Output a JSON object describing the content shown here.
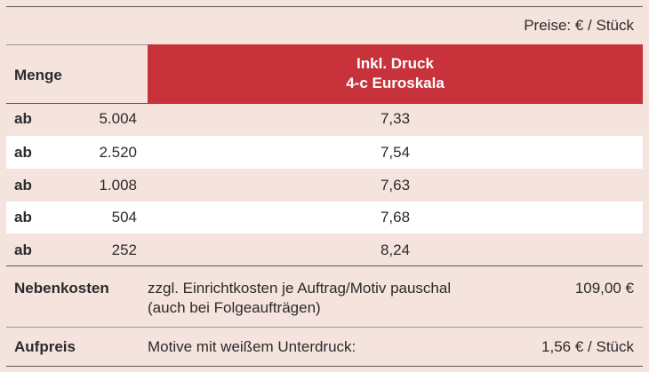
{
  "header": {
    "units": "Preise: € / Stück",
    "col_quantity": "Menge",
    "col_price_line1": "Inkl. Druck",
    "col_price_line2": "4-c Euroskala"
  },
  "rows": [
    {
      "prefix": "ab",
      "qty": "5.004",
      "price": "7,33"
    },
    {
      "prefix": "ab",
      "qty": "2.520",
      "price": "7,54"
    },
    {
      "prefix": "ab",
      "qty": "1.008",
      "price": "7,63"
    },
    {
      "prefix": "ab",
      "qty": "504",
      "price": "7,68"
    },
    {
      "prefix": "ab",
      "qty": "252",
      "price": "8,24"
    }
  ],
  "nebenkosten": {
    "label": "Nebenkosten",
    "desc_line1": "zzgl. Einrichtkosten je Auftrag/Motiv pauschal",
    "desc_line2": "(auch bei Folgeaufträgen)",
    "amount": "109,00 €"
  },
  "aufpreis": {
    "label": "Aufpreis",
    "desc": "Motive mit weißem Unterdruck:",
    "amount": "1,56 € / Stück"
  }
}
